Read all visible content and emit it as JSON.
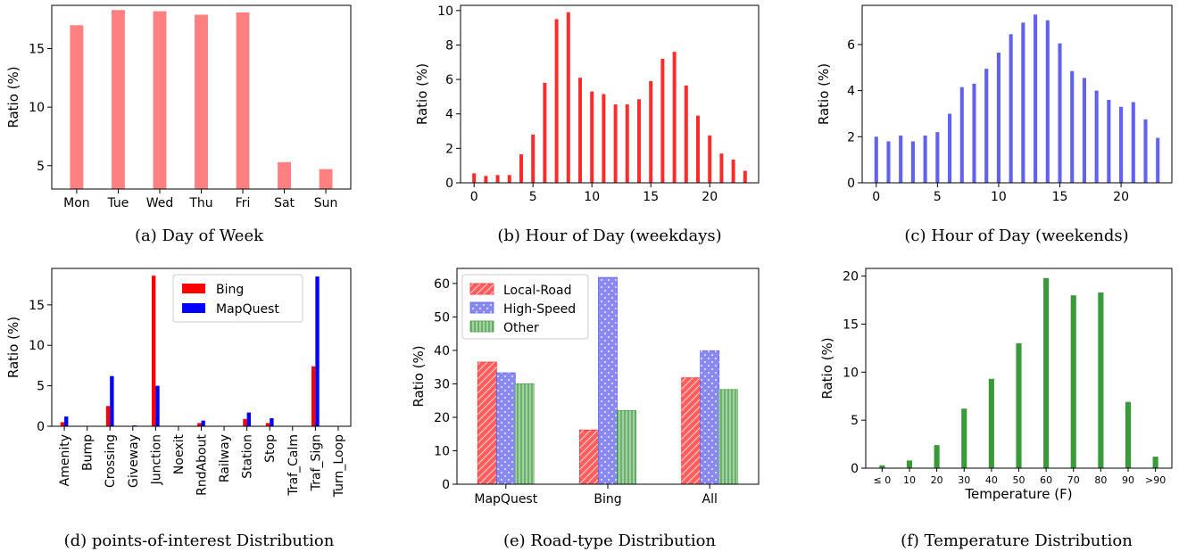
{
  "colors": {
    "salmon": "#ff8080",
    "red": "#ff2a2a",
    "blue": "#6262f0",
    "bing": "#ff0000",
    "mapquest": "#0000ff",
    "green": "#3a9a3a"
  },
  "chart_data": [
    {
      "id": "a",
      "type": "bar",
      "caption": "(a) Day of Week",
      "ylabel": "Ratio (%)",
      "xlabel": "",
      "categories": [
        "Mon",
        "Tue",
        "Wed",
        "Thu",
        "Fri",
        "Sat",
        "Sun"
      ],
      "values": [
        17.0,
        18.3,
        18.2,
        17.9,
        18.1,
        5.3,
        4.7
      ],
      "ylim": [
        3,
        18.7
      ],
      "yticks": [
        5,
        10,
        15
      ],
      "color": "salmon"
    },
    {
      "id": "b",
      "type": "bar",
      "caption": "(b) Hour of Day (weekdays)",
      "ylabel": "Ratio (%)",
      "xlabel": "",
      "x": [
        0,
        1,
        2,
        3,
        4,
        5,
        6,
        7,
        8,
        9,
        10,
        11,
        12,
        13,
        14,
        15,
        16,
        17,
        18,
        19,
        20,
        21,
        22,
        23
      ],
      "values": [
        0.55,
        0.4,
        0.45,
        0.45,
        1.65,
        2.8,
        5.8,
        9.5,
        9.9,
        6.1,
        5.3,
        5.15,
        4.55,
        4.55,
        4.85,
        5.9,
        7.2,
        7.6,
        5.65,
        3.9,
        2.75,
        1.7,
        1.35,
        0.7
      ],
      "ylim": [
        0,
        10.3
      ],
      "yticks": [
        0,
        2,
        4,
        6,
        8,
        10
      ],
      "xticks": [
        0,
        5,
        10,
        15,
        20
      ],
      "color": "red"
    },
    {
      "id": "c",
      "type": "bar",
      "caption": "(c) Hour of Day (weekends)",
      "ylabel": "Ratio (%)",
      "xlabel": "",
      "x": [
        0,
        1,
        2,
        3,
        4,
        5,
        6,
        7,
        8,
        9,
        10,
        11,
        12,
        13,
        14,
        15,
        16,
        17,
        18,
        19,
        20,
        21,
        22,
        23
      ],
      "values": [
        2.0,
        1.8,
        2.05,
        1.8,
        2.05,
        2.2,
        3.0,
        4.15,
        4.3,
        4.95,
        5.65,
        6.45,
        6.95,
        7.3,
        7.05,
        6.05,
        4.85,
        4.55,
        4.0,
        3.6,
        3.3,
        3.5,
        2.75,
        1.95
      ],
      "ylim": [
        0,
        7.7
      ],
      "yticks": [
        0,
        2,
        4,
        6
      ],
      "xticks": [
        0,
        5,
        10,
        15,
        20
      ],
      "color": "blue"
    },
    {
      "id": "d",
      "type": "bar",
      "caption": "(d) points-of-interest Distribution",
      "ylabel": "Ratio (%)",
      "xlabel": "",
      "categories": [
        "Amenity",
        "Bump",
        "Crossing",
        "Giveway",
        "Junction",
        "Noexit",
        "RndAbout",
        "Railway",
        "Station",
        "Stop",
        "Traf_Calm",
        "Traf_Sign",
        "Turn_Loop"
      ],
      "series": [
        {
          "name": "Bing",
          "color": "bing",
          "values": [
            0.5,
            0.02,
            2.5,
            0.02,
            18.6,
            0.02,
            0.4,
            0.02,
            0.9,
            0.4,
            0.02,
            7.4,
            0.02
          ]
        },
        {
          "name": "MapQuest",
          "color": "mapquest",
          "values": [
            1.2,
            0.02,
            6.2,
            0.1,
            5.0,
            0.02,
            0.7,
            0.02,
            1.7,
            1.0,
            0.02,
            18.5,
            0.02
          ]
        }
      ],
      "ylim": [
        0,
        19.5
      ],
      "yticks": [
        0,
        5,
        10,
        15
      ],
      "legend": "top-right"
    },
    {
      "id": "e",
      "type": "bar",
      "caption": "(e) Road-type Distribution",
      "ylabel": "Ratio (%)",
      "xlabel": "",
      "categories": [
        "MapQuest",
        "Bing",
        "All"
      ],
      "series": [
        {
          "name": "Local-Road",
          "color": "red",
          "pattern": "hatch",
          "values": [
            36.5,
            16.2,
            31.8
          ]
        },
        {
          "name": "High-Speed",
          "color": "blue",
          "pattern": "dots",
          "values": [
            33.3,
            61.8,
            39.9
          ]
        },
        {
          "name": "Other",
          "color": "green",
          "pattern": "vlines",
          "values": [
            30.0,
            22.0,
            28.3
          ]
        }
      ],
      "ylim": [
        0,
        64.5
      ],
      "yticks": [
        0,
        10,
        20,
        30,
        40,
        50,
        60
      ],
      "legend": "top-left"
    },
    {
      "id": "f",
      "type": "bar",
      "caption": "(f) Temperature Distribution",
      "ylabel": "Ratio (%)",
      "xlabel": "Temperature (F)",
      "categories": [
        "≤ 0",
        "10",
        "20",
        "30",
        "40",
        "50",
        "60",
        "70",
        "80",
        "90",
        ">90"
      ],
      "values": [
        0.3,
        0.8,
        2.4,
        6.2,
        9.3,
        13.0,
        19.8,
        18.0,
        18.3,
        6.9,
        1.2
      ],
      "ylim": [
        0,
        20.8
      ],
      "yticks": [
        0,
        5,
        10,
        15,
        20
      ],
      "color": "green"
    }
  ]
}
